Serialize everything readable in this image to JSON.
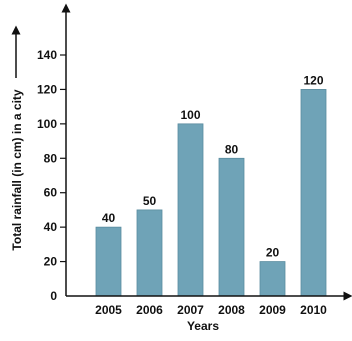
{
  "chart_data": {
    "type": "bar",
    "categories": [
      "2005",
      "2006",
      "2007",
      "2008",
      "2009",
      "2010"
    ],
    "values": [
      40,
      50,
      100,
      80,
      20,
      120
    ],
    "data_labels": [
      "40",
      "50",
      "100",
      "80",
      "20",
      "120"
    ],
    "yticks": [
      "0",
      "20",
      "40",
      "60",
      "80",
      "100",
      "120",
      "140"
    ],
    "ytick_values": [
      0,
      20,
      40,
      60,
      80,
      100,
      120,
      140
    ],
    "ylim": [
      0,
      140
    ],
    "xlabel": "Years",
    "ylabel": "Total rainfall (in cm) in a city",
    "grid": false,
    "bar_color": "#6fa3b7",
    "axis_color": "#111111"
  }
}
